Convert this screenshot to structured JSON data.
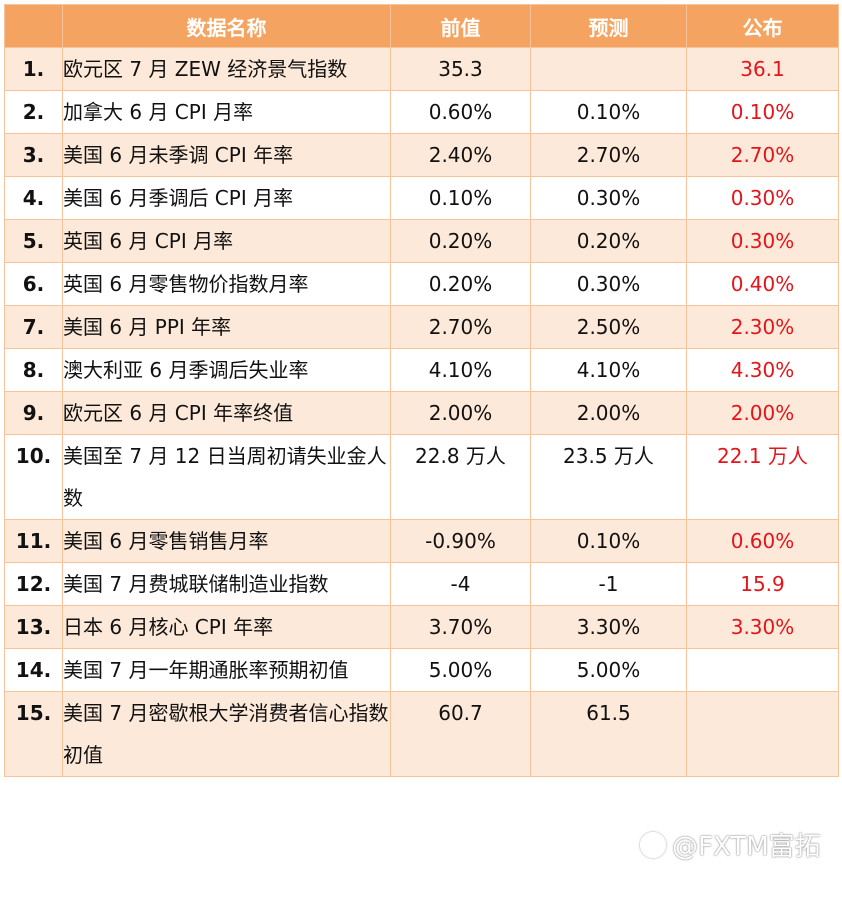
{
  "headers": {
    "name": "数据名称",
    "prev": "前值",
    "forecast": "预测",
    "actual": "公布"
  },
  "rows": [
    {
      "no": "1.",
      "name": "欧元区 7 月 ZEW 经济景气指数",
      "prev": "35.3",
      "forecast": "",
      "actual": "36.1"
    },
    {
      "no": "2.",
      "name": "加拿大 6 月 CPI 月率",
      "prev": "0.60%",
      "forecast": "0.10%",
      "actual": "0.10%"
    },
    {
      "no": "3.",
      "name": "美国 6 月未季调 CPI 年率",
      "prev": "2.40%",
      "forecast": "2.70%",
      "actual": "2.70%"
    },
    {
      "no": "4.",
      "name": "美国 6 月季调后 CPI 月率",
      "prev": "0.10%",
      "forecast": "0.30%",
      "actual": "0.30%"
    },
    {
      "no": "5.",
      "name": "英国 6 月 CPI 月率",
      "prev": "0.20%",
      "forecast": "0.20%",
      "actual": "0.30%"
    },
    {
      "no": "6.",
      "name": "英国 6 月零售物价指数月率",
      "prev": "0.20%",
      "forecast": "0.30%",
      "actual": "0.40%"
    },
    {
      "no": "7.",
      "name": "美国 6 月 PPI 年率",
      "prev": "2.70%",
      "forecast": "2.50%",
      "actual": "2.30%"
    },
    {
      "no": "8.",
      "name": "澳大利亚 6 月季调后失业率",
      "prev": "4.10%",
      "forecast": "4.10%",
      "actual": "4.30%"
    },
    {
      "no": "9.",
      "name": "欧元区 6 月 CPI 年率终值",
      "prev": "2.00%",
      "forecast": "2.00%",
      "actual": "2.00%"
    },
    {
      "no": "10.",
      "name": "美国至 7 月 12 日当周初请失业金人数",
      "prev": "22.8 万人",
      "forecast": "23.5 万人",
      "actual": "22.1 万人"
    },
    {
      "no": "11.",
      "name": "美国 6 月零售销售月率",
      "prev": "-0.90%",
      "forecast": "0.10%",
      "actual": "0.60%"
    },
    {
      "no": "12.",
      "name": "美国 7 月费城联储制造业指数",
      "prev": "-4",
      "forecast": "-1",
      "actual": "15.9"
    },
    {
      "no": "13.",
      "name": "日本 6 月核心 CPI 年率",
      "prev": "3.70%",
      "forecast": "3.30%",
      "actual": "3.30%"
    },
    {
      "no": "14.",
      "name": "美国 7 月一年期通胀率预期初值",
      "prev": "5.00%",
      "forecast": "5.00%",
      "actual": ""
    },
    {
      "no": "15.",
      "name": "美国 7 月密歇根大学消费者信心指数初值",
      "prev": "60.7",
      "forecast": "61.5",
      "actual": ""
    }
  ],
  "watermark": "@FXTM富拓",
  "colors": {
    "header_bg": "#f4a460",
    "odd_row": "#fde9d9",
    "border": "#f7c39a",
    "actual_text": "#e3151b"
  }
}
